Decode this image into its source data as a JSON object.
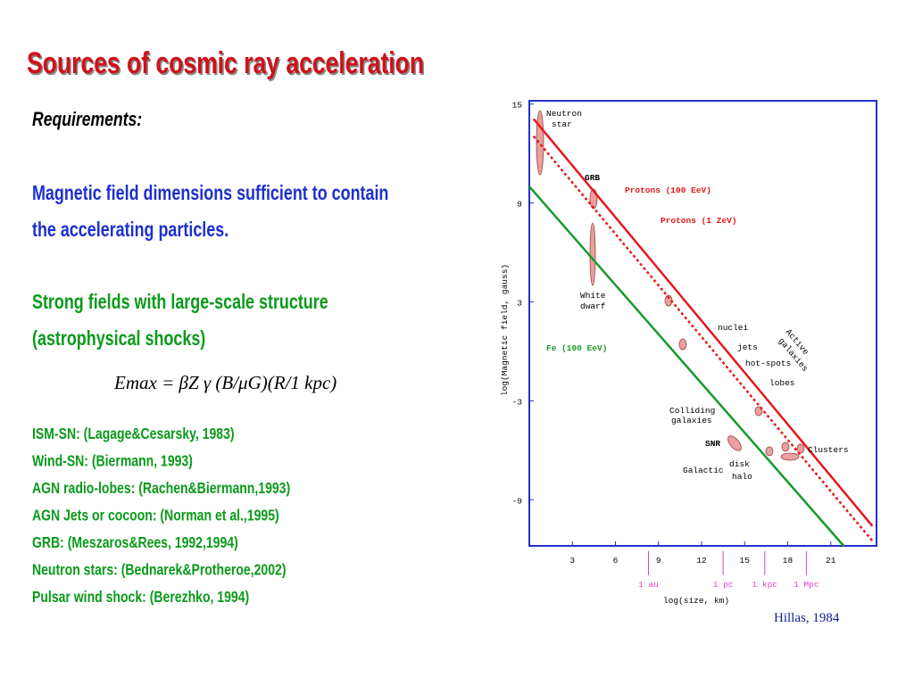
{
  "slide": {
    "title": "Sources of cosmic ray acceleration",
    "requirements": "Requirements:",
    "blue_lines": [
      "Magnetic field dimensions  sufficient to contain",
      "the accelerating particles."
    ],
    "green_lines": [
      "Strong fields with large-scale structure",
      "(astrophysical shocks)"
    ],
    "formula": "Emax = βZ γ (B/μG)(R/1 kpc)",
    "references": [
      "ISM-SN:  (Lagage&Cesarsky, 1983)",
      "Wind-SN: (Biermann, 1993)",
      "AGN radio-lobes: (Rachen&Biermann,1993)",
      "AGN Jets or cocoon: (Norman et al.,1995)",
      "GRB: (Meszaros&Rees, 1992,1994)",
      "Neutron stars: (Bednarek&Protheroe,2002)",
      "Pulsar wind shock: (Berezhko, 1994)"
    ],
    "credit": "Hillas, 1984"
  },
  "chart_data": {
    "type": "line",
    "x_label": "log(size, km)",
    "y_label": "log(Magnetic field, gauss)",
    "xlim": [
      0,
      24
    ],
    "ylim": [
      -11.8,
      15.2
    ],
    "xticks": [
      3,
      6,
      9,
      12,
      15,
      18,
      21
    ],
    "yticks": [
      15,
      9,
      3,
      -3,
      -9
    ],
    "series": [
      {
        "name": "Protons (100 EeV)",
        "color": "#e8161b",
        "style": "solid",
        "x": [
          0.3,
          23.9
        ],
        "values": [
          14.1,
          -10.6
        ]
      },
      {
        "name": "Protons (1 ZeV)",
        "color": "#e8161b",
        "style": "dotted",
        "x": [
          0.3,
          23.9
        ],
        "values": [
          13.05,
          -11.5
        ]
      },
      {
        "name": "Fe (100 EeV)",
        "color": "#1a9a2a",
        "style": "solid",
        "x": [
          0,
          21.9
        ],
        "values": [
          10.0,
          -11.8
        ]
      }
    ],
    "scale_marks": [
      {
        "value": 8.3,
        "label": "1 au"
      },
      {
        "value": 13.5,
        "label": "1 pc"
      },
      {
        "value": 16.4,
        "label": "1 kpc"
      },
      {
        "value": 19.3,
        "label": "1 Mpc"
      }
    ],
    "annotations": [
      "Neutron",
      "star",
      "GRB",
      "White",
      "dwarf",
      "nuclei",
      "jets",
      "hot-spots",
      "lobes",
      "Active",
      "galaxies",
      "Colliding",
      "galaxies",
      "SNR",
      "Clusters",
      "disk",
      "Galactic",
      "halo"
    ]
  }
}
